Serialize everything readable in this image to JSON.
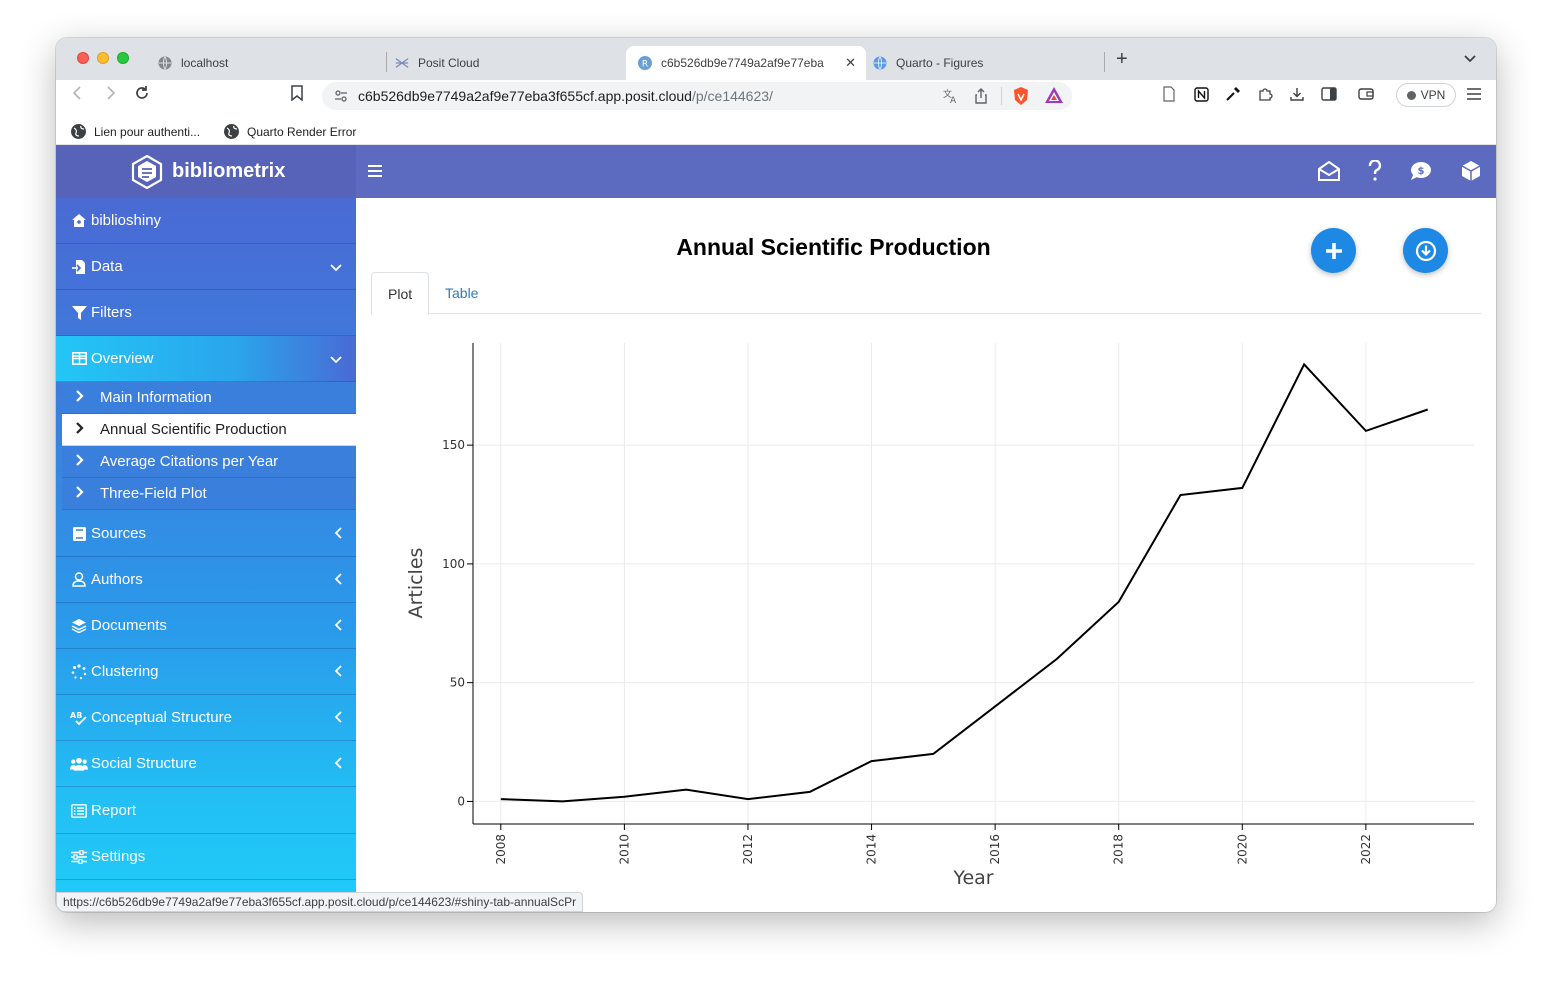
{
  "browser": {
    "tabs": [
      {
        "title": "localhost",
        "icon": "globe-icon"
      },
      {
        "title": "Posit Cloud",
        "icon": "posit-icon"
      },
      {
        "title": "c6b526db9e7749a2af9e77eba",
        "icon": "r-icon",
        "active": true
      },
      {
        "title": "Quarto - Figures",
        "icon": "globe-icon"
      }
    ],
    "tab_close": "✕",
    "new_tab": "+",
    "url_host": "c6b526db9e7749a2af9e77eba3f655cf.app.posit.cloud",
    "url_path": "/p/ce144623/",
    "vpn_label": "VPN",
    "bookmarks": [
      {
        "label": "Lien pour authenti..."
      },
      {
        "label": "Quarto Render Error"
      }
    ],
    "status_url": "https://c6b526db9e7749a2af9e77eba3f655cf.app.posit.cloud/p/ce144623/#shiny-tab-annualScPr"
  },
  "app": {
    "brand": "bibliometrix",
    "sidebar": {
      "items": [
        {
          "label": "biblioshiny",
          "icon": "home-icon"
        },
        {
          "label": "Data",
          "icon": "import-icon",
          "caret": "down"
        },
        {
          "label": "Filters",
          "icon": "filter-icon"
        },
        {
          "label": "Overview",
          "icon": "table-icon",
          "caret": "down",
          "active": true
        },
        {
          "label": "Sources",
          "icon": "book-icon",
          "caret": "left"
        },
        {
          "label": "Authors",
          "icon": "user-icon",
          "caret": "left"
        },
        {
          "label": "Documents",
          "icon": "layers-icon",
          "caret": "left"
        },
        {
          "label": "Clustering",
          "icon": "spinner-icon",
          "caret": "left"
        },
        {
          "label": "Conceptual Structure",
          "icon": "spellcheck-icon",
          "caret": "left"
        },
        {
          "label": "Social Structure",
          "icon": "users-icon",
          "caret": "left"
        },
        {
          "label": "Report",
          "icon": "list-icon"
        },
        {
          "label": "Settings",
          "icon": "sliders-icon"
        }
      ],
      "overview_sub": [
        {
          "label": "Main Information"
        },
        {
          "label": "Annual Scientific Production",
          "selected": true
        },
        {
          "label": "Average Citations per Year"
        },
        {
          "label": "Three-Field Plot"
        }
      ]
    },
    "page_title": "Annual Scientific Production",
    "tabs": [
      {
        "label": "Plot",
        "active": true
      },
      {
        "label": "Table"
      }
    ]
  },
  "chart_data": {
    "type": "line",
    "xlabel": "Year",
    "ylabel": "Articles",
    "x": [
      2008,
      2009,
      2010,
      2011,
      2012,
      2013,
      2014,
      2015,
      2016,
      2017,
      2018,
      2019,
      2020,
      2021,
      2022,
      2023
    ],
    "values": [
      1,
      0,
      2,
      5,
      1,
      4,
      17,
      20,
      40,
      60,
      84,
      129,
      132,
      184,
      156,
      165
    ],
    "x_ticks": [
      2008,
      2010,
      2012,
      2014,
      2016,
      2018,
      2020,
      2022
    ],
    "y_ticks": [
      0,
      50,
      100,
      150
    ],
    "xlim": [
      2007.55,
      2023.75
    ],
    "ylim": [
      -9.5,
      193
    ],
    "grid": true,
    "line_color": "#000000"
  }
}
